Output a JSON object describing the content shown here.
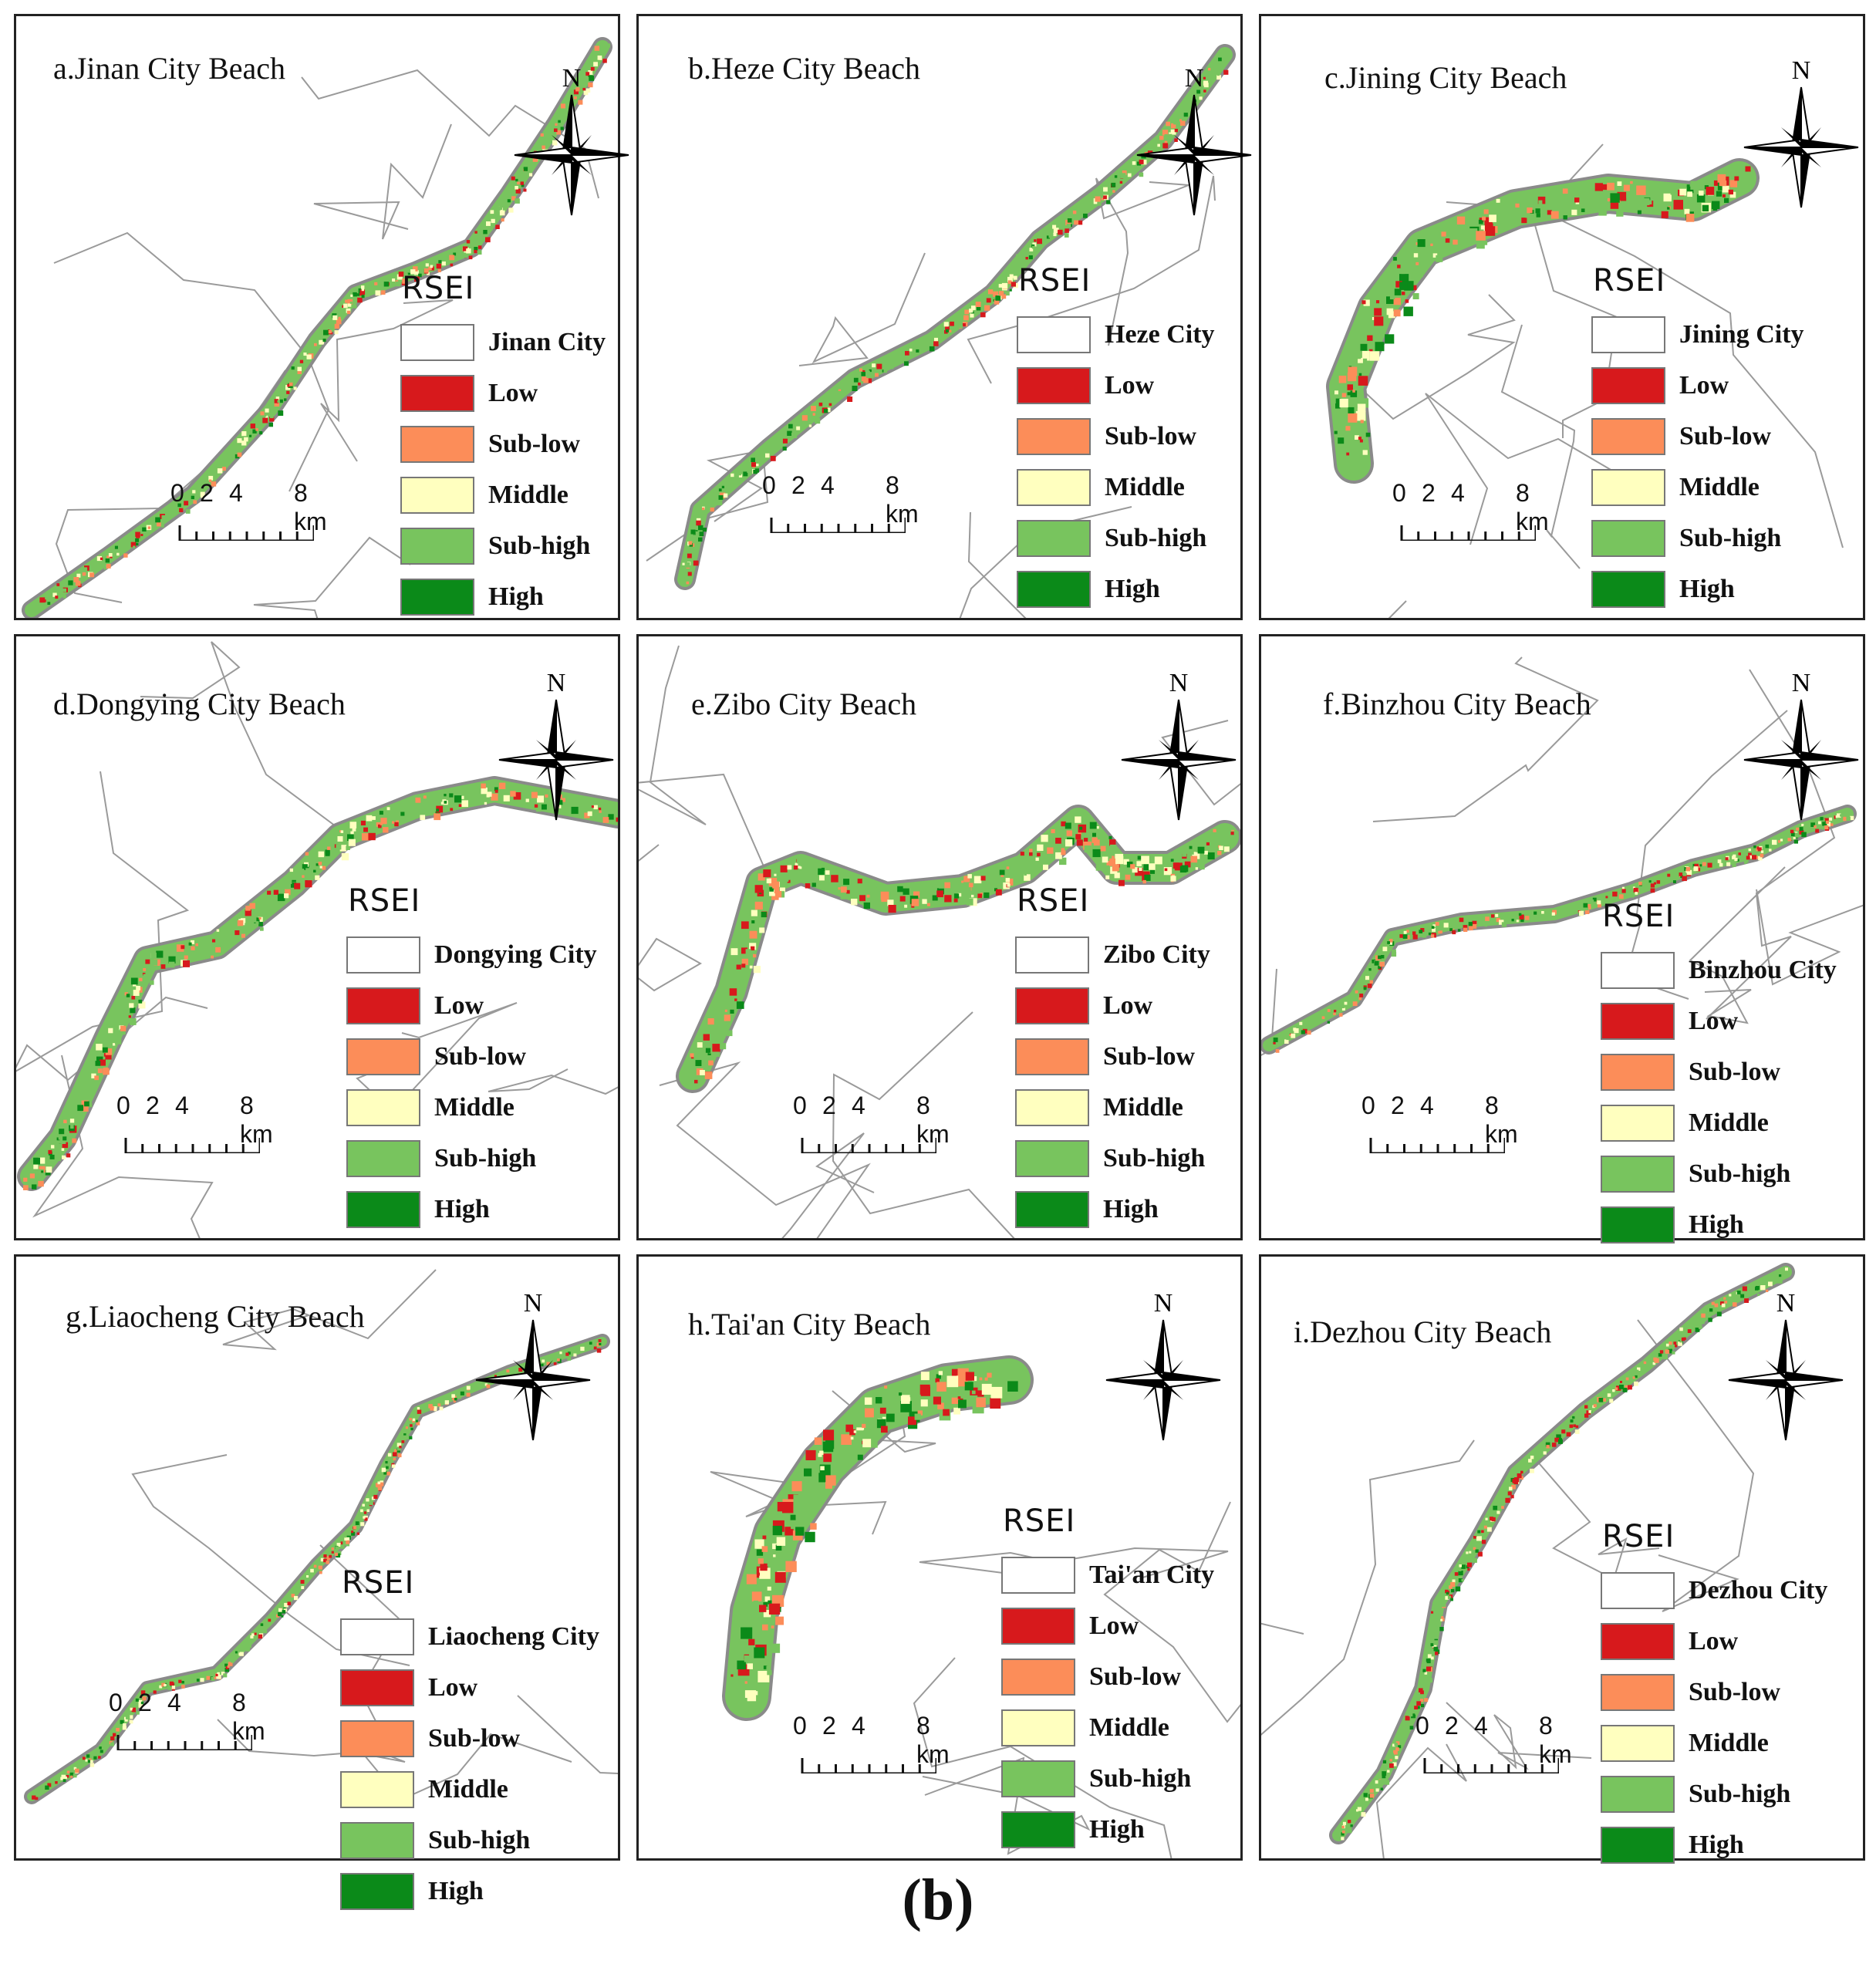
{
  "panels": [
    {
      "id": "a",
      "title": "a.Jinan City Beach",
      "city": "Jinan City"
    },
    {
      "id": "b",
      "title": "b.Heze City Beach",
      "city": "Heze City"
    },
    {
      "id": "c",
      "title": "c.Jining City Beach",
      "city": "Jining City"
    },
    {
      "id": "d",
      "title": "d.Dongying City Beach",
      "city": "Dongying City"
    },
    {
      "id": "e",
      "title": "e.Zibo City Beach",
      "city": "Zibo City"
    },
    {
      "id": "f",
      "title": "f.Binzhou City Beach",
      "city": "Binzhou City"
    },
    {
      "id": "g",
      "title": "g.Liaocheng City Beach",
      "city": "Liaocheng City"
    },
    {
      "id": "h",
      "title": "h.Tai'an City Beach",
      "city": "Tai'an City"
    },
    {
      "id": "i",
      "title": "i.Dezhou City Beach",
      "city": "Dezhou City"
    }
  ],
  "legend": {
    "title": "RSEI",
    "classes": [
      {
        "label": "Low",
        "color": "#d7191c"
      },
      {
        "label": "Sub-low",
        "color": "#fc8d59"
      },
      {
        "label": "Middle",
        "color": "#ffffbf"
      },
      {
        "label": "Sub-high",
        "color": "#78c45e"
      },
      {
        "label": "High",
        "color": "#0b8a19"
      }
    ]
  },
  "north_label": "N",
  "scale_bar": {
    "ticks": [
      "0",
      "2",
      "4",
      "8 km"
    ]
  },
  "caption": "(b)"
}
